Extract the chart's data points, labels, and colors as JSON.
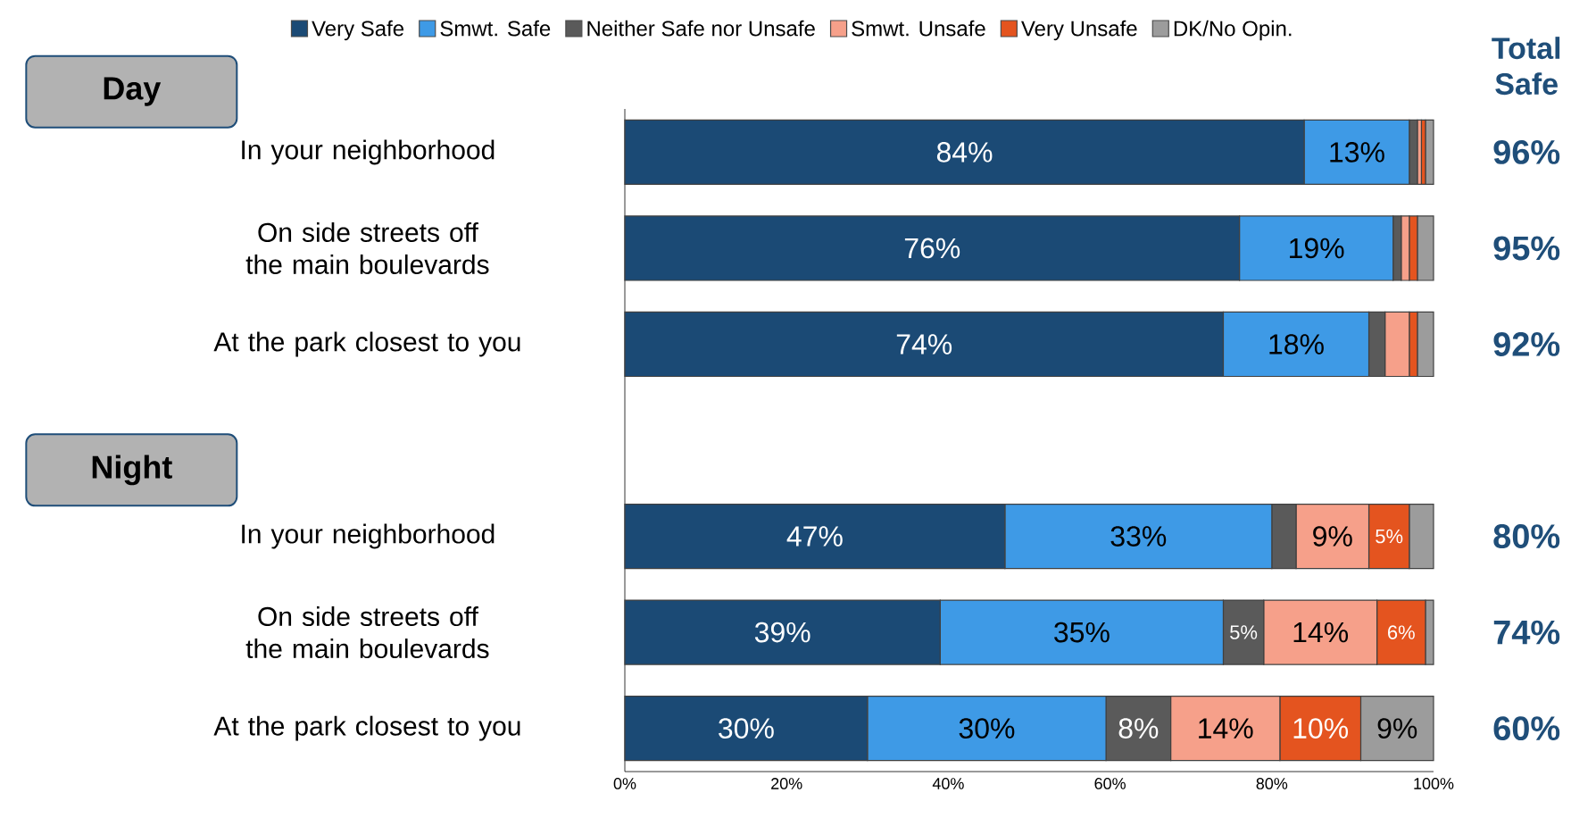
{
  "chart_data": {
    "type": "bar",
    "orientation": "horizontal",
    "stacked": true,
    "categories": [
      "In your neighborhood",
      "On side streets off the main boulevards",
      "At the park closest to you",
      null,
      "In your neighborhood",
      "On side streets off the main boulevards",
      "At the park closest to you"
    ],
    "series": [
      {
        "name": "Very Safe",
        "color": "#1b4a75",
        "values": [
          84,
          76,
          74,
          null,
          47,
          39,
          30
        ],
        "value_labels": [
          "84%",
          "76%",
          "74%",
          null,
          "47%",
          "39%",
          "30%"
        ]
      },
      {
        "name": "Smwt. Safe",
        "color": "#3e9ae6",
        "values": [
          13,
          19,
          18,
          null,
          33,
          35,
          29.5
        ],
        "value_labels": [
          "13%",
          "19%",
          "18%",
          null,
          "33%",
          "35%",
          "30%"
        ]
      },
      {
        "name": "Neither Safe nor Unsafe",
        "color": "#5a5a5a",
        "values": [
          1,
          1,
          2,
          null,
          3,
          5,
          8
        ],
        "value_labels": [
          null,
          null,
          null,
          null,
          null,
          "5%",
          "8%"
        ]
      },
      {
        "name": "Smwt. Unsafe",
        "color": "#f6a08a",
        "values": [
          0.5,
          1,
          3,
          null,
          9,
          14,
          13.5
        ],
        "value_labels": [
          null,
          null,
          null,
          null,
          "9%",
          "14%",
          "14%"
        ]
      },
      {
        "name": "Very Unsafe",
        "color": "#e4541f",
        "values": [
          0.5,
          1,
          1,
          null,
          5,
          6,
          10
        ],
        "value_labels": [
          null,
          null,
          null,
          null,
          "5%",
          "6%",
          "10%"
        ]
      },
      {
        "name": "DK/No Opin.",
        "color": "#9c9c9c",
        "values": [
          1,
          2,
          2,
          null,
          3,
          1,
          9
        ],
        "value_labels": [
          null,
          null,
          null,
          null,
          null,
          null,
          "9%"
        ]
      }
    ],
    "xlim": [
      0,
      100
    ],
    "xticks": [
      {
        "value": 0,
        "label": "0%"
      },
      {
        "value": 20,
        "label": "20%"
      },
      {
        "value": 40,
        "label": "40%"
      },
      {
        "value": 60,
        "label": "60%"
      },
      {
        "value": 80,
        "label": "80%"
      },
      {
        "value": 100,
        "label": "100%"
      }
    ],
    "legend": "top",
    "annotations": [
      "Day",
      "Night",
      "Total Safe",
      "96%",
      "95%",
      "92%",
      "80%",
      "74%",
      "60%"
    ]
  }
}
